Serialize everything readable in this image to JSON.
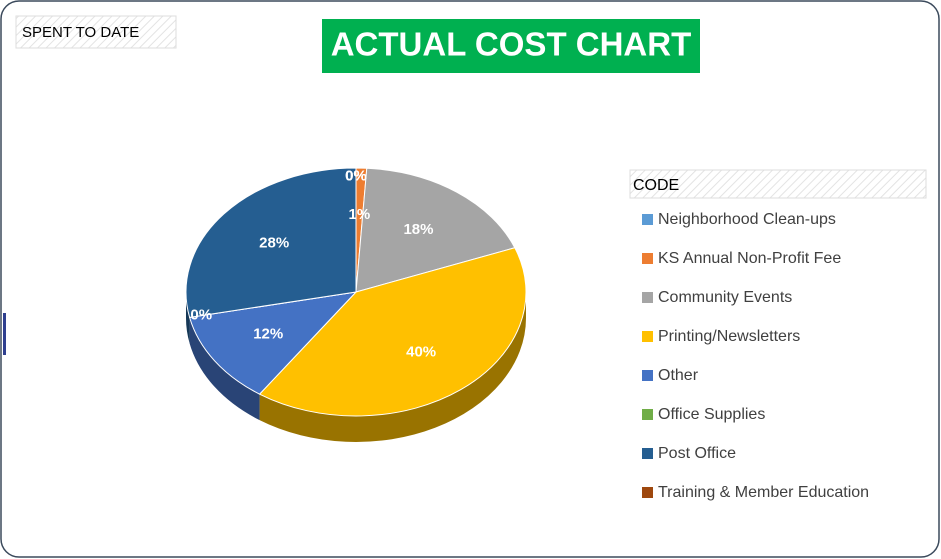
{
  "chart_data": {
    "type": "pie",
    "title": "ACTUAL COST CHART",
    "subtitle": "SPENT TO DATE",
    "legend_title": "CODE",
    "legend": "right",
    "categories": [
      "Neighborhood Clean-ups",
      "KS Annual Non-Profit Fee",
      "Community Events",
      "Printing/Newsletters",
      "Other",
      "Office Supplies",
      "Post Office",
      "Training & Member Education"
    ],
    "values": [
      0,
      1,
      18,
      40,
      12,
      0,
      28,
      0
    ],
    "value_labels": [
      "0%",
      "1%",
      "18%",
      "40%",
      "12%",
      "0%",
      "28%",
      "0%"
    ],
    "colors": [
      "#5b9bd5",
      "#ed7d31",
      "#a5a5a5",
      "#ffc000",
      "#4472c4",
      "#70ad47",
      "#255e91",
      "#9e480e"
    ]
  }
}
